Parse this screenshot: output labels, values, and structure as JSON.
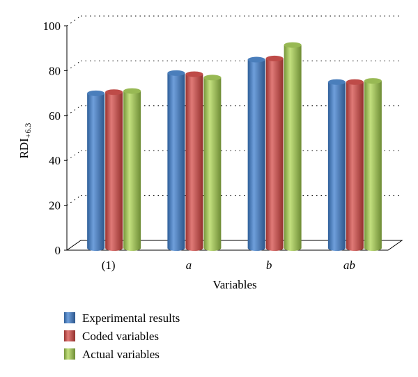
{
  "chart_data": {
    "type": "bar",
    "categories": [
      "(1)",
      "a",
      "b",
      "ab"
    ],
    "category_italic": [
      false,
      true,
      true,
      true
    ],
    "series": [
      {
        "name": "Experimental results",
        "values": [
          69,
          78,
          84,
          74
        ],
        "color": "#4a7ebb"
      },
      {
        "name": "Coded variables",
        "values": [
          69.5,
          77.5,
          84.5,
          74
        ],
        "color": "#be4b48"
      },
      {
        "name": "Actual variables",
        "values": [
          70,
          76,
          90.5,
          74.5
        ],
        "color": "#98b954"
      }
    ],
    "title": "",
    "xlabel": "Variables",
    "ylabel_main": "RDI",
    "ylabel_sub": "+6.3",
    "ylim": [
      0,
      100
    ],
    "yticks": [
      0,
      20,
      40,
      60,
      80,
      100
    ],
    "grid": true,
    "legend_position": "bottom-left"
  }
}
